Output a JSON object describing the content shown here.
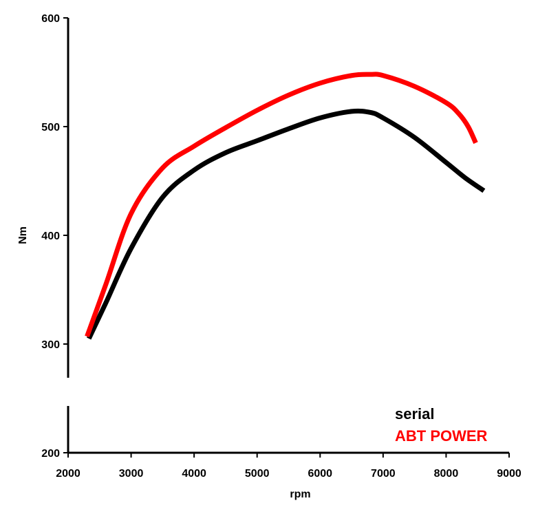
{
  "chart_data": {
    "type": "line",
    "title": "",
    "xlabel": "rpm",
    "ylabel": "Nm",
    "xlim": [
      2000,
      9000
    ],
    "ylim": [
      200,
      600
    ],
    "x_ticks": [
      2000,
      3000,
      4000,
      5000,
      6000,
      7000,
      8000,
      9000
    ],
    "y_ticks": [
      200,
      300,
      400,
      500,
      600
    ],
    "grid": false,
    "legend_position": "bottom-right",
    "series": [
      {
        "name": "serial",
        "color": "#000000",
        "x": [
          2330,
          2600,
          3000,
          3500,
          4000,
          4500,
          5000,
          5500,
          6000,
          6500,
          6800,
          7000,
          7500,
          8000,
          8300,
          8600
        ],
        "y": [
          305,
          338,
          388,
          435,
          460,
          476,
          487,
          498,
          508,
          514,
          513,
          508,
          490,
          467,
          453,
          441
        ]
      },
      {
        "name": "ABT POWER",
        "color": "#ff0000",
        "x": [
          2300,
          2600,
          3000,
          3500,
          4000,
          4500,
          5000,
          5500,
          6000,
          6500,
          6800,
          7000,
          7500,
          8000,
          8200,
          8350,
          8470
        ],
        "y": [
          307,
          355,
          420,
          462,
          482,
          499,
          515,
          529,
          540,
          547,
          548,
          547,
          537,
          522,
          512,
          500,
          485
        ]
      }
    ]
  }
}
